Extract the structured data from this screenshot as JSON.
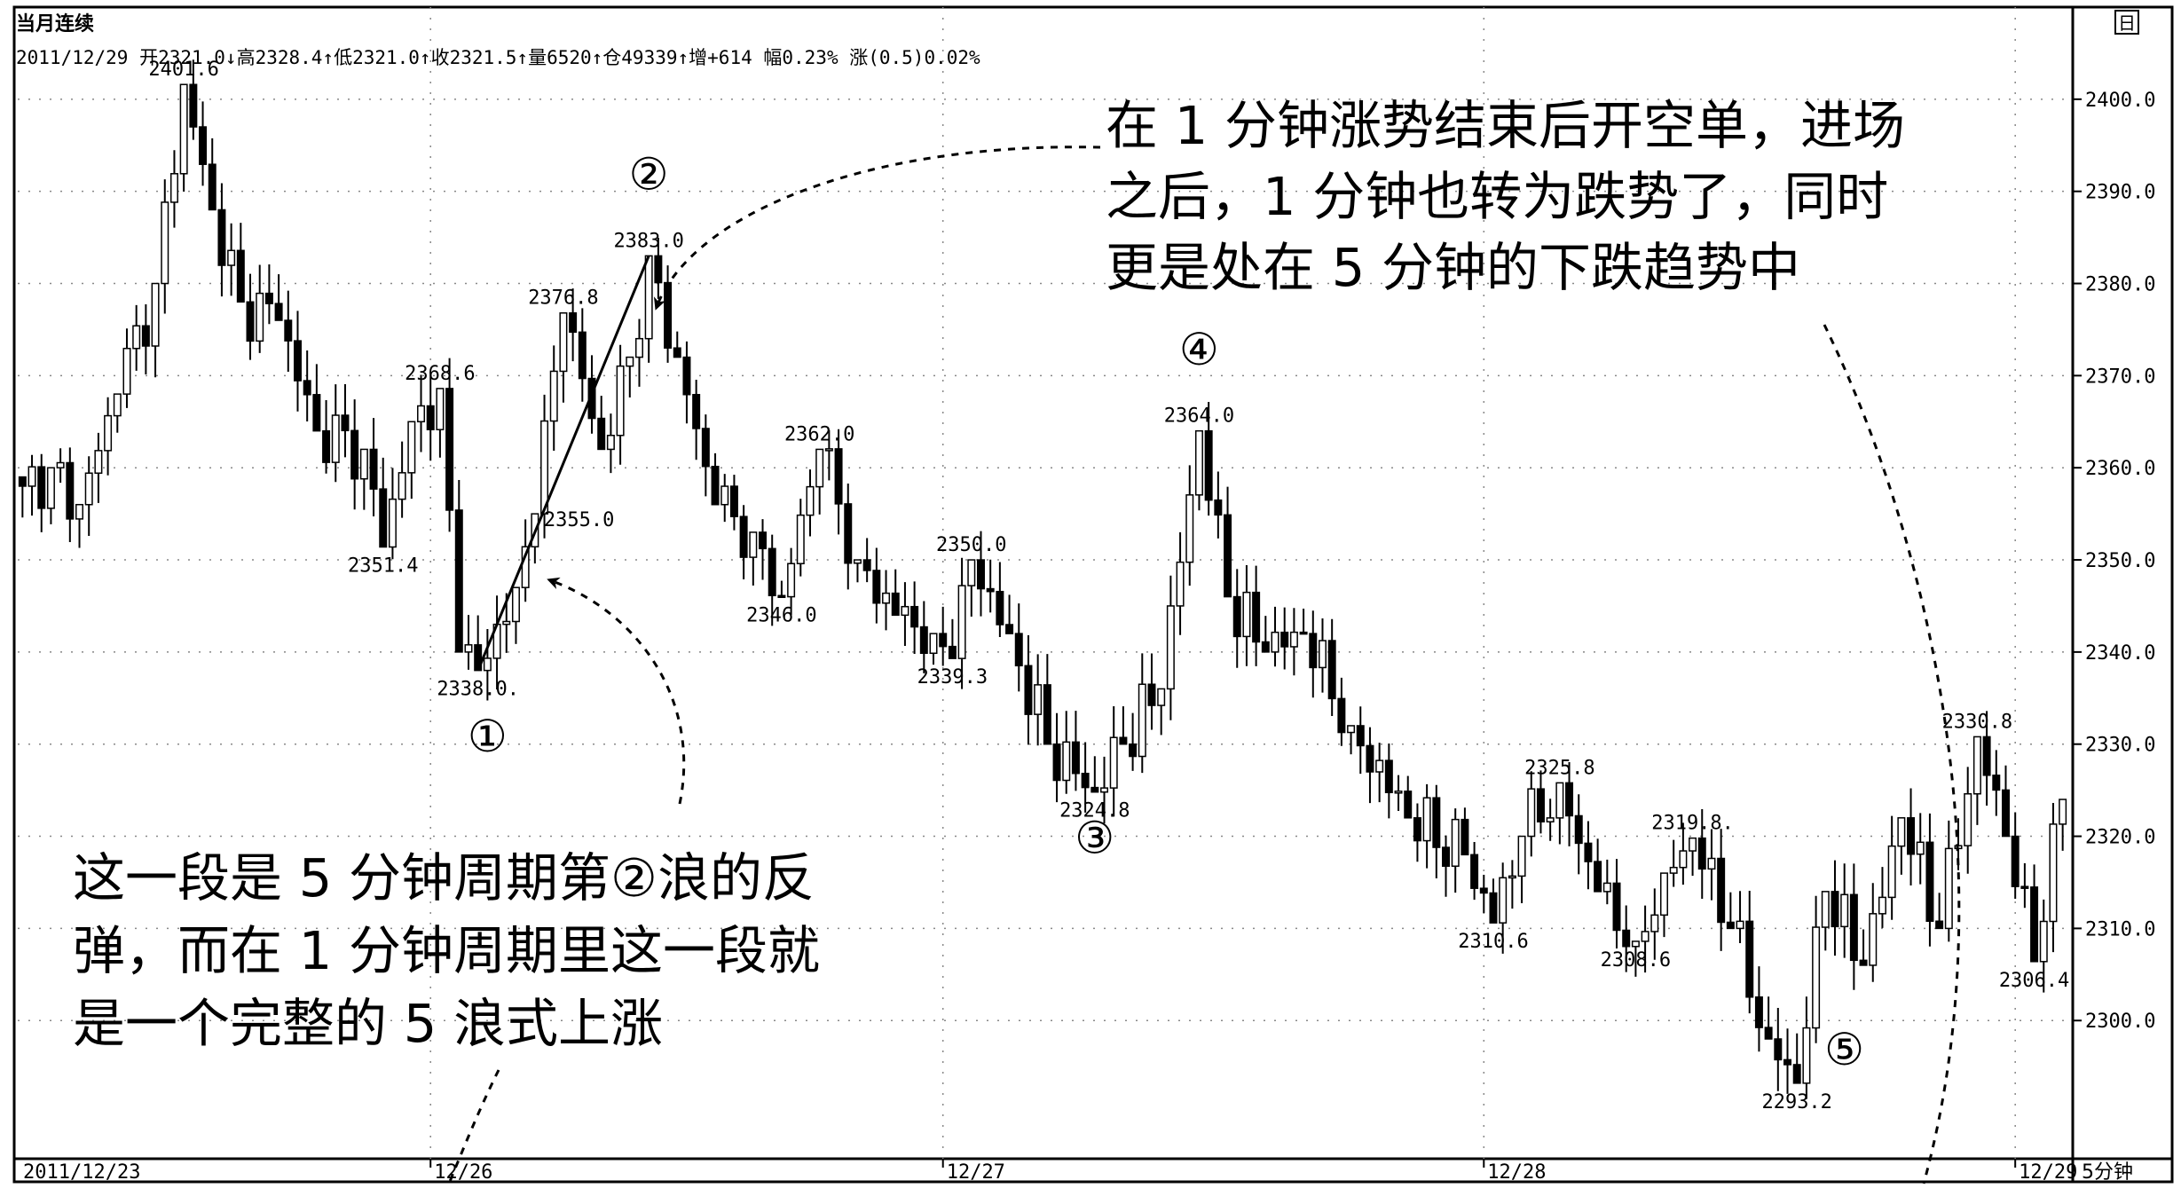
{
  "header": {
    "title": "当月连续",
    "ohlc_line": "2011/12/29 开2321.0↓高2328.4↑低2321.0↑收2321.5↑量6520↑仓49339↑增+614 幅0.23% 涨(0.5)0.02%",
    "corner_icon": "日"
  },
  "colors": {
    "background": "#ffffff",
    "candle": "#000000",
    "grid": "#999999",
    "frame": "#000000"
  },
  "chart_data": {
    "type": "candlestick",
    "timeframe": "5分钟",
    "ylim": [
      2285,
      2410
    ],
    "ytick_values": [
      2300,
      2310,
      2320,
      2330,
      2340,
      2350,
      2360,
      2370,
      2380,
      2390,
      2400
    ],
    "ytick_labels": [
      "2300.0",
      "2310.0",
      "2320.0",
      "2330.0",
      "2340.0",
      "2350.0",
      "2360.0",
      "2370.0",
      "2380.0",
      "2390.0",
      "2400.0"
    ],
    "x_labels": [
      {
        "bar": 0,
        "label": "2011/12/23"
      },
      {
        "bar": 43,
        "label": "12/26"
      },
      {
        "bar": 97,
        "label": "12/27"
      },
      {
        "bar": 154,
        "label": "12/28"
      },
      {
        "bar": 210,
        "label": "12/29"
      },
      {
        "bar": 214,
        "label": "5分钟"
      }
    ],
    "bar_count": 216,
    "anchors": [
      [
        0,
        2358
      ],
      [
        3,
        2360
      ],
      [
        6,
        2356
      ],
      [
        10,
        2368
      ],
      [
        14,
        2380
      ],
      [
        17,
        2401.6
      ],
      [
        20,
        2388
      ],
      [
        23,
        2378
      ],
      [
        27,
        2376
      ],
      [
        31,
        2364
      ],
      [
        36,
        2362
      ],
      [
        38,
        2351.4
      ],
      [
        41,
        2365
      ],
      [
        44,
        2368.6
      ],
      [
        46,
        2340
      ],
      [
        48,
        2338.0
      ],
      [
        52,
        2347
      ],
      [
        54,
        2355.0
      ],
      [
        57,
        2376.8
      ],
      [
        61,
        2362
      ],
      [
        64,
        2372
      ],
      [
        66,
        2383.0
      ],
      [
        69,
        2372
      ],
      [
        73,
        2356
      ],
      [
        77,
        2353
      ],
      [
        80,
        2346.0
      ],
      [
        84,
        2362.0
      ],
      [
        88,
        2350
      ],
      [
        92,
        2344
      ],
      [
        96,
        2342
      ],
      [
        98,
        2339.3
      ],
      [
        100,
        2350.0
      ],
      [
        104,
        2342
      ],
      [
        108,
        2330
      ],
      [
        113,
        2324.8
      ],
      [
        116,
        2330
      ],
      [
        120,
        2336
      ],
      [
        124,
        2364.0
      ],
      [
        127,
        2346
      ],
      [
        131,
        2340
      ],
      [
        135,
        2342
      ],
      [
        140,
        2332
      ],
      [
        146,
        2322
      ],
      [
        152,
        2318
      ],
      [
        155,
        2310.6
      ],
      [
        158,
        2320
      ],
      [
        162,
        2325.8
      ],
      [
        166,
        2314
      ],
      [
        170,
        2308.6
      ],
      [
        173,
        2316
      ],
      [
        176,
        2319.8
      ],
      [
        180,
        2310
      ],
      [
        184,
        2298
      ],
      [
        187,
        2293.2
      ],
      [
        190,
        2314
      ],
      [
        194,
        2306
      ],
      [
        198,
        2322
      ],
      [
        202,
        2310
      ],
      [
        206,
        2330.8
      ],
      [
        209,
        2320
      ],
      [
        212,
        2306.4
      ],
      [
        215,
        2324
      ]
    ],
    "high_low_labels": [
      {
        "bar": 17,
        "price": 2401.6,
        "text": "2401.6",
        "pos": "above"
      },
      {
        "bar": 38,
        "price": 2351.4,
        "text": "2351.4",
        "pos": "below"
      },
      {
        "bar": 44,
        "price": 2368.6,
        "text": "2368.6",
        "pos": "above"
      },
      {
        "bar": 48,
        "price": 2338.0,
        "text": "2338.0.",
        "pos": "below"
      },
      {
        "bar": 54,
        "price": 2355.0,
        "text": "2355.0",
        "pos": "right"
      },
      {
        "bar": 57,
        "price": 2376.8,
        "text": "2376.8",
        "pos": "above"
      },
      {
        "bar": 66,
        "price": 2383.0,
        "text": "2383.0",
        "pos": "above"
      },
      {
        "bar": 80,
        "price": 2346.0,
        "text": "2346.0",
        "pos": "below"
      },
      {
        "bar": 84,
        "price": 2362.0,
        "text": "2362.0",
        "pos": "above"
      },
      {
        "bar": 98,
        "price": 2339.3,
        "text": "2339.3",
        "pos": "below"
      },
      {
        "bar": 100,
        "price": 2350.0,
        "text": "2350.0",
        "pos": "above"
      },
      {
        "bar": 113,
        "price": 2324.8,
        "text": "2324.8",
        "pos": "below"
      },
      {
        "bar": 124,
        "price": 2364.0,
        "text": "2364.0",
        "pos": "above"
      },
      {
        "bar": 155,
        "price": 2310.6,
        "text": "2310.6",
        "pos": "below"
      },
      {
        "bar": 162,
        "price": 2325.8,
        "text": "2325.8",
        "pos": "above"
      },
      {
        "bar": 170,
        "price": 2308.6,
        "text": "2308.6",
        "pos": "below"
      },
      {
        "bar": 176,
        "price": 2319.8,
        "text": "2319.8.",
        "pos": "above"
      },
      {
        "bar": 187,
        "price": 2293.2,
        "text": "2293.2",
        "pos": "below"
      },
      {
        "bar": 206,
        "price": 2330.8,
        "text": "2330.8",
        "pos": "above"
      },
      {
        "bar": 212,
        "price": 2306.4,
        "text": "2306.4",
        "pos": "below"
      }
    ],
    "wave_markers": [
      {
        "text": "①",
        "bar": 49,
        "price": 2330.5
      },
      {
        "text": "②",
        "bar": 66,
        "price": 2391.5
      },
      {
        "text": "③",
        "bar": 113,
        "price": 2319.5
      },
      {
        "text": "④",
        "bar": 124,
        "price": 2372.5
      },
      {
        "text": "⑤",
        "bar": 192,
        "price": 2296.5
      }
    ],
    "trend_line": {
      "from": {
        "bar": 48,
        "price": 2338.0
      },
      "to": {
        "bar": 66,
        "price": 2383.0
      }
    },
    "annotations": [
      {
        "lines": [
          "在 1 分钟涨势结束后开空单，进场",
          "之后，1 分钟也转为跌势了，同时",
          "更是处在 5 分钟的下跌趋势中"
        ]
      },
      {
        "lines": [
          "这一段是 5 分钟周期第②浪的反",
          "弹，而在 1 分钟周期里这一段就",
          "是一个完整的 5 浪式上涨"
        ]
      }
    ]
  }
}
